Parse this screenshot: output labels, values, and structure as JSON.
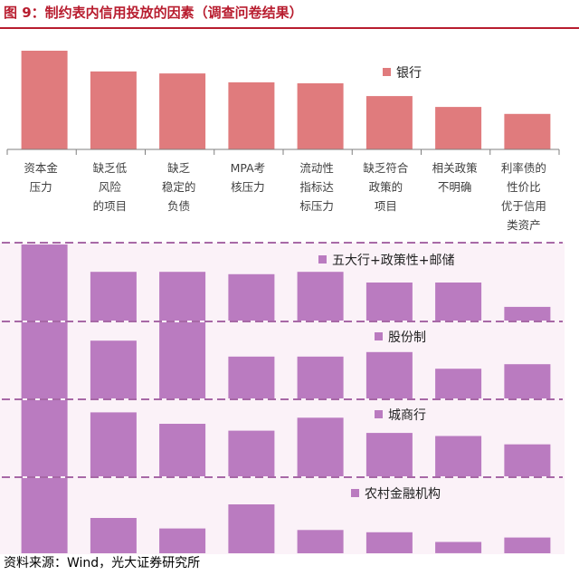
{
  "title": "图 9：制约表内信用投放的因素（调查问卷结果）",
  "source": "资料来源：Wind，光大证券研究所",
  "colors": {
    "bank": "#e07b7d",
    "big_five": "#ba7bc0",
    "joint_stock": "#ba7bc0",
    "city": "#ba7bc0",
    "rural": "#ba7bc0",
    "panel_bg": "#fbf2f8",
    "divider": "#8b3a8b",
    "title": "#b81d2f"
  },
  "chart_data": {
    "type": "bar",
    "categories": [
      [
        "资本金",
        "压力"
      ],
      [
        "缺乏低",
        "风险",
        "的项目"
      ],
      [
        "缺乏",
        "稳定的",
        "负债"
      ],
      [
        "MPA考",
        "核压力"
      ],
      [
        "流动性",
        "指标达",
        "标压力"
      ],
      [
        "缺乏符合",
        "政策的",
        "项目"
      ],
      [
        "相关政策",
        "不明确"
      ],
      [
        "利率债的",
        "性价比",
        "优于信用",
        "类资产"
      ]
    ],
    "series": [
      {
        "name": "银行",
        "color": "bank",
        "values": [
          100,
          79,
          77,
          68,
          67,
          54,
          43,
          36
        ]
      },
      {
        "name": "五大行+政策性+邮储",
        "color": "big_five",
        "values": [
          100,
          64,
          64,
          61,
          64,
          50,
          50,
          18
        ]
      },
      {
        "name": "股份制",
        "color": "joint_stock",
        "values": [
          100,
          76,
          100,
          55,
          55,
          61,
          39,
          45
        ]
      },
      {
        "name": "城商行",
        "color": "city",
        "values": [
          100,
          84,
          69,
          60,
          77,
          57,
          53,
          42
        ]
      },
      {
        "name": "农村金融机构",
        "color": "rural",
        "values": [
          100,
          47,
          33,
          65,
          31,
          28,
          15,
          21
        ]
      }
    ],
    "ylim": [
      0,
      100
    ],
    "legend": "top-right-in-panel"
  }
}
